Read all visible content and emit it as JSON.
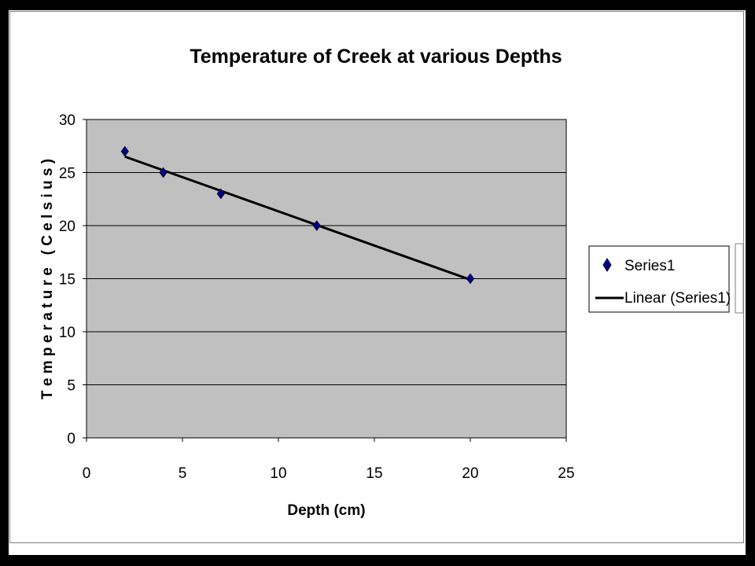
{
  "chart_data": {
    "type": "scatter",
    "title": "Temperature of Creek at various Depths",
    "xlabel": "Depth (cm)",
    "ylabel": "T e m p e r a t u r e   ( C e l s i u s )",
    "xlim": [
      0,
      25
    ],
    "ylim": [
      0,
      30
    ],
    "xticks": [
      0,
      5,
      10,
      15,
      20,
      25
    ],
    "yticks": [
      0,
      5,
      10,
      15,
      20,
      25,
      30
    ],
    "grid": "horizontal",
    "legend_position": "right",
    "series": [
      {
        "name": "Series1",
        "marker": "diamond",
        "color": "#000080",
        "x": [
          2,
          4,
          7,
          12,
          20
        ],
        "y": [
          27,
          25,
          23,
          20,
          15
        ]
      }
    ],
    "trendline": {
      "name": "Linear (Series1)",
      "type": "linear",
      "color": "#000000",
      "x": [
        2,
        20
      ],
      "y": [
        26.5,
        14.9
      ]
    },
    "colors": {
      "plot_background": "#c0c0c0",
      "gridline": "#000000",
      "border": "#000000"
    }
  }
}
